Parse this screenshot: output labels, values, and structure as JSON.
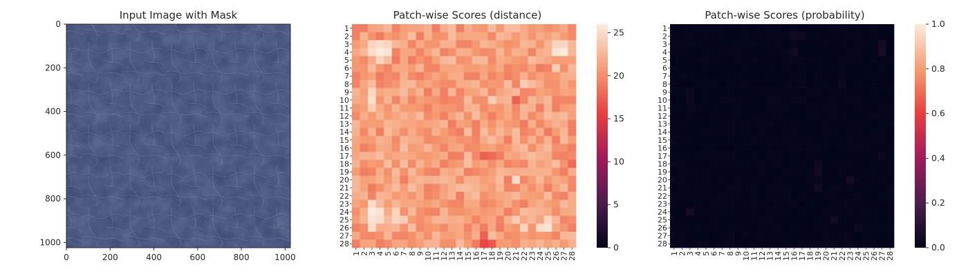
{
  "colors": {
    "leather_base": "#3b4873",
    "leather_light": "#56638f",
    "leather_crease": "#2a3356",
    "axis": "#262626",
    "cmap_stops": [
      "#03051a",
      "#4c1d4b",
      "#a11a5b",
      "#e83f3f",
      "#f69c73",
      "#faebdd"
    ]
  },
  "chart_data": [
    {
      "type": "image",
      "title": "Input Image with Mask",
      "image_icon": "leather-texture",
      "xlim": [
        0,
        1024
      ],
      "ylim": [
        1024,
        0
      ],
      "xticks": [
        "0",
        "200",
        "400",
        "600",
        "800",
        "1000"
      ],
      "yticks": [
        "0",
        "200",
        "400",
        "600",
        "800",
        "1000"
      ]
    },
    {
      "type": "heatmap",
      "title": "Patch-wise Scores (distance)",
      "rows": 28,
      "cols": 28,
      "row_labels": [
        "1",
        "2",
        "3",
        "4",
        "5",
        "6",
        "7",
        "8",
        "9",
        "10",
        "11",
        "12",
        "13",
        "14",
        "15",
        "16",
        "17",
        "18",
        "19",
        "20",
        "21",
        "22",
        "23",
        "24",
        "25",
        "26",
        "27",
        "28"
      ],
      "col_labels": [
        "1",
        "2",
        "3",
        "4",
        "5",
        "6",
        "7",
        "8",
        "9",
        "10",
        "11",
        "12",
        "13",
        "14",
        "15",
        "16",
        "17",
        "18",
        "19",
        "20",
        "21",
        "22",
        "23",
        "24",
        "25",
        "26",
        "27",
        "28"
      ],
      "vmin": 0,
      "vmax": 26,
      "colorbar_ticks": [
        "0",
        "5",
        "10",
        "15",
        "20",
        "25"
      ],
      "base_range": [
        19,
        23
      ],
      "high_cells": [
        {
          "r": 3,
          "c": 3,
          "v": 24.5
        },
        {
          "r": 3,
          "c": 4,
          "v": 25
        },
        {
          "r": 3,
          "c": 5,
          "v": 24.5
        },
        {
          "r": 4,
          "c": 3,
          "v": 25
        },
        {
          "r": 4,
          "c": 4,
          "v": 26
        },
        {
          "r": 4,
          "c": 5,
          "v": 25.5
        },
        {
          "r": 5,
          "c": 4,
          "v": 24.5
        },
        {
          "r": 3,
          "c": 26,
          "v": 24.5
        },
        {
          "r": 4,
          "c": 26,
          "v": 25.5
        },
        {
          "r": 4,
          "c": 27,
          "v": 26
        },
        {
          "r": 3,
          "c": 27,
          "v": 24.5
        },
        {
          "r": 6,
          "c": 26,
          "v": 24
        },
        {
          "r": 9,
          "c": 3,
          "v": 24.5
        },
        {
          "r": 10,
          "c": 3,
          "v": 25
        },
        {
          "r": 11,
          "c": 3,
          "v": 24
        },
        {
          "r": 8,
          "c": 22,
          "v": 24
        },
        {
          "r": 10,
          "c": 18,
          "v": 24
        },
        {
          "r": 23,
          "c": 3,
          "v": 25
        },
        {
          "r": 24,
          "c": 3,
          "v": 26
        },
        {
          "r": 25,
          "c": 3,
          "v": 25.5
        },
        {
          "r": 26,
          "c": 3,
          "v": 25
        },
        {
          "r": 24,
          "c": 4,
          "v": 25.5
        },
        {
          "r": 25,
          "c": 4,
          "v": 25
        },
        {
          "r": 24,
          "c": 6,
          "v": 24.5
        },
        {
          "r": 25,
          "c": 6,
          "v": 24.5
        },
        {
          "r": 25,
          "c": 7,
          "v": 24
        },
        {
          "r": 26,
          "c": 24,
          "v": 25
        },
        {
          "r": 26,
          "c": 25,
          "v": 25.5
        },
        {
          "r": 25,
          "c": 25,
          "v": 24.5
        },
        {
          "r": 26,
          "c": 22,
          "v": 24.5
        },
        {
          "r": 25,
          "c": 21,
          "v": 24
        },
        {
          "r": 20,
          "c": 21,
          "v": 25
        }
      ],
      "low_cells": [
        {
          "r": 28,
          "c": 17,
          "v": 16
        },
        {
          "r": 28,
          "c": 18,
          "v": 17
        },
        {
          "r": 27,
          "c": 17,
          "v": 17.5
        },
        {
          "r": 17,
          "c": 17,
          "v": 17.5
        },
        {
          "r": 17,
          "c": 18,
          "v": 18
        },
        {
          "r": 10,
          "c": 21,
          "v": 17.5
        },
        {
          "r": 18,
          "c": 28,
          "v": 18
        }
      ]
    },
    {
      "type": "heatmap",
      "title": "Patch-wise Scores (probability)",
      "rows": 28,
      "cols": 28,
      "row_labels": [
        "1",
        "2",
        "3",
        "4",
        "5",
        "6",
        "7",
        "8",
        "9",
        "10",
        "11",
        "12",
        "13",
        "14",
        "15",
        "16",
        "17",
        "18",
        "19",
        "20",
        "21",
        "22",
        "23",
        "24",
        "25",
        "26",
        "27",
        "28"
      ],
      "col_labels": [
        "1",
        "2",
        "3",
        "4",
        "5",
        "6",
        "7",
        "8",
        "9",
        "10",
        "11",
        "12",
        "13",
        "14",
        "15",
        "16",
        "17",
        "18",
        "19",
        "20",
        "21",
        "22",
        "23",
        "24",
        "25",
        "26",
        "27",
        "28"
      ],
      "vmin": 0,
      "vmax": 1,
      "colorbar_ticks": [
        "0.0",
        "0.2",
        "0.4",
        "0.6",
        "0.8",
        "1.0"
      ],
      "base_range": [
        0,
        0.01
      ],
      "high_cells": [
        {
          "r": 2,
          "c": 16,
          "v": 0.04
        },
        {
          "r": 2,
          "c": 17,
          "v": 0.03
        },
        {
          "r": 3,
          "c": 27,
          "v": 0.05
        },
        {
          "r": 4,
          "c": 27,
          "v": 0.06
        },
        {
          "r": 4,
          "c": 16,
          "v": 0.04
        },
        {
          "r": 9,
          "c": 3,
          "v": 0.03
        },
        {
          "r": 10,
          "c": 3,
          "v": 0.03
        },
        {
          "r": 8,
          "c": 22,
          "v": 0.03
        },
        {
          "r": 18,
          "c": 19,
          "v": 0.03
        },
        {
          "r": 19,
          "c": 19,
          "v": 0.04
        },
        {
          "r": 20,
          "c": 23,
          "v": 0.05
        },
        {
          "r": 21,
          "c": 19,
          "v": 0.04
        },
        {
          "r": 24,
          "c": 3,
          "v": 0.05
        },
        {
          "r": 25,
          "c": 21,
          "v": 0.04
        },
        {
          "r": 26,
          "c": 24,
          "v": 0.03
        },
        {
          "r": 17,
          "c": 27,
          "v": 0.03
        }
      ],
      "low_cells": []
    }
  ]
}
